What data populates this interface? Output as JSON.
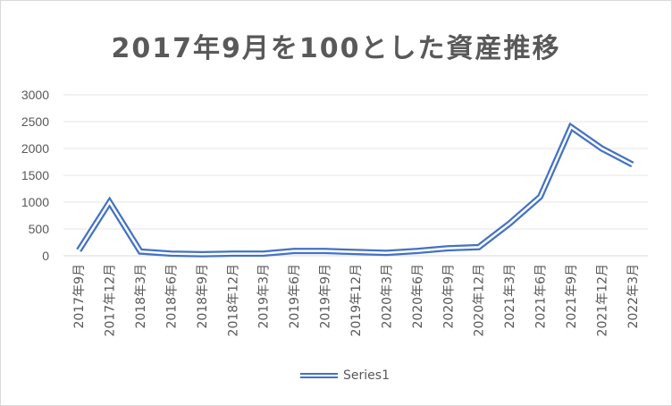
{
  "chart_data": {
    "type": "line",
    "title": "2017年9月を100とした資産推移",
    "categories": [
      "2017年9月",
      "2017年12月",
      "2018年3月",
      "2018年6月",
      "2018年9月",
      "2018年12月",
      "2019年3月",
      "2019年6月",
      "2019年9月",
      "2019年12月",
      "2020年3月",
      "2020年6月",
      "2020年9月",
      "2020年12月",
      "2021年3月",
      "2021年6月",
      "2021年9月",
      "2021年12月",
      "2022年3月"
    ],
    "series": [
      {
        "name": "Series1",
        "values": [
          100,
          1000,
          80,
          40,
          30,
          40,
          40,
          90,
          90,
          70,
          55,
          90,
          140,
          160,
          600,
          1100,
          2400,
          2000,
          1700
        ]
      }
    ],
    "ylim": [
      0,
      3000
    ],
    "yticks": [
      0,
      500,
      1000,
      1500,
      2000,
      2500,
      3000
    ],
    "grid": true,
    "legend": "bottom",
    "color": "#4472c4"
  }
}
